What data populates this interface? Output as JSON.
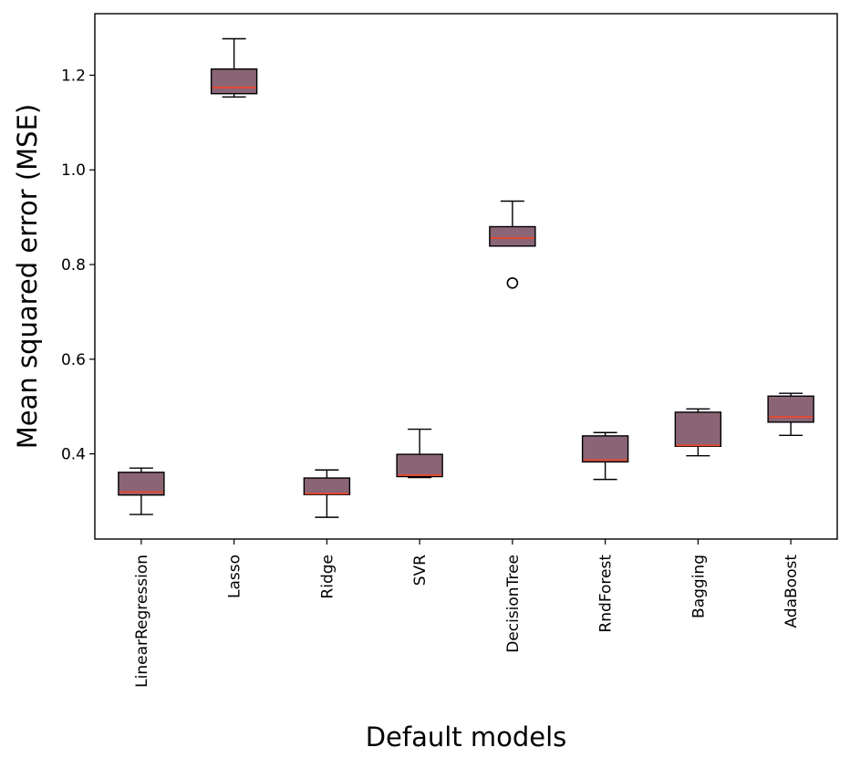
{
  "chart_data": {
    "type": "box",
    "title": "",
    "xlabel": "Default models",
    "ylabel": "Mean squared error (MSE)",
    "ylim": [
      0.22,
      1.33
    ],
    "yticks": [
      0.4,
      0.6,
      0.8,
      1.0,
      1.2
    ],
    "ytick_labels": [
      "0.4",
      "0.6",
      "0.8",
      "1.0",
      "1.2"
    ],
    "grid": false,
    "categories": [
      "LinearRegression",
      "Lasso",
      "Ridge",
      "SVR",
      "DecisionTree",
      "RndForest",
      "Bagging",
      "AdaBoost"
    ],
    "boxes": [
      {
        "whisker_low": 0.272,
        "q1": 0.313,
        "median": 0.319,
        "q3": 0.361,
        "whisker_high": 0.37,
        "outliers": []
      },
      {
        "whisker_low": 1.154,
        "q1": 1.161,
        "median": 1.174,
        "q3": 1.213,
        "whisker_high": 1.277,
        "outliers": []
      },
      {
        "whisker_low": 0.266,
        "q1": 0.314,
        "median": 0.316,
        "q3": 0.349,
        "whisker_high": 0.366,
        "outliers": []
      },
      {
        "whisker_low": 0.35,
        "q1": 0.352,
        "median": 0.355,
        "q3": 0.399,
        "whisker_high": 0.452,
        "outliers": []
      },
      {
        "whisker_low": 0.839,
        "q1": 0.839,
        "median": 0.856,
        "q3": 0.88,
        "whisker_high": 0.934,
        "outliers": [
          0.761
        ]
      },
      {
        "whisker_low": 0.346,
        "q1": 0.383,
        "median": 0.387,
        "q3": 0.438,
        "whisker_high": 0.445,
        "outliers": []
      },
      {
        "whisker_low": 0.396,
        "q1": 0.416,
        "median": 0.418,
        "q3": 0.488,
        "whisker_high": 0.495,
        "outliers": []
      },
      {
        "whisker_low": 0.439,
        "q1": 0.467,
        "median": 0.478,
        "q3": 0.522,
        "whisker_high": 0.528,
        "outliers": []
      }
    ],
    "colors": {
      "box_fill": "#8a6576",
      "box_edge": "#000000",
      "median": "#e24a33",
      "whisker": "#000000"
    }
  }
}
